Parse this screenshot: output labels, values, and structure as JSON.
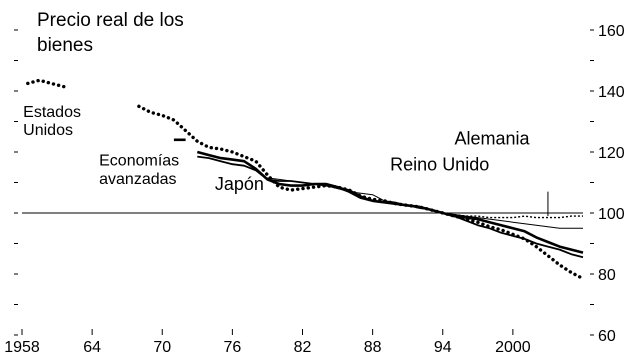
{
  "chart_data": {
    "type": "line",
    "title_lines": [
      "Precio real de los",
      "bienes"
    ],
    "xlabel": "",
    "ylabel": "",
    "xlim": [
      1958,
      2006
    ],
    "ylim": [
      60,
      160
    ],
    "x_tick_values": [
      1958,
      1964,
      1970,
      1976,
      1982,
      1988,
      1994,
      2000
    ],
    "x_tick_labels": [
      "1958",
      "64",
      "70",
      "76",
      "82",
      "88",
      "94",
      "2000"
    ],
    "y_ticks": [
      60,
      80,
      100,
      120,
      140,
      160
    ],
    "y_minor_ticks": [
      70,
      90,
      110,
      130,
      150
    ],
    "y_axis_side": "right",
    "reference_line": 100,
    "series": [
      {
        "name": "Estados Unidos",
        "style": "dotted-thick",
        "segments": [
          [
            [
              1958.5,
              142.5
            ],
            [
              1959.5,
              143.5
            ],
            [
              1960.5,
              142.5
            ],
            [
              1961.5,
              141.5
            ],
            [
              1962.0,
              141.0
            ]
          ],
          [
            [
              1968.0,
              135.0
            ],
            [
              1969.0,
              133.0
            ],
            [
              1970.0,
              132.0
            ],
            [
              1971.0,
              130.5
            ],
            [
              1972.0,
              127.0
            ],
            [
              1973.0,
              123.5
            ],
            [
              1974.0,
              121.5
            ],
            [
              1975.0,
              121.0
            ],
            [
              1976.0,
              120.0
            ],
            [
              1977.0,
              118.5
            ],
            [
              1978.0,
              117.0
            ],
            [
              1979.0,
              112.5
            ],
            [
              1980.0,
              108.5
            ],
            [
              1981.0,
              107.5
            ],
            [
              1982.0,
              108.0
            ],
            [
              1983.0,
              108.5
            ],
            [
              1984.0,
              109.0
            ],
            [
              1985.0,
              108.5
            ],
            [
              1986.0,
              107.5
            ],
            [
              1987.0,
              105.5
            ],
            [
              1988.0,
              104.5
            ],
            [
              1989.0,
              104.0
            ],
            [
              1990.0,
              103.0
            ],
            [
              1991.0,
              102.5
            ],
            [
              1992.0,
              102.0
            ],
            [
              1993.0,
              101.0
            ],
            [
              1994.0,
              100.0
            ],
            [
              1995.0,
              99.0
            ],
            [
              1996.0,
              98.0
            ],
            [
              1997.0,
              97.0
            ],
            [
              1998.0,
              95.5
            ],
            [
              1999.0,
              94.5
            ],
            [
              2000.0,
              93.0
            ],
            [
              2001.0,
              91.5
            ],
            [
              2002.0,
              89.0
            ],
            [
              2003.0,
              86.0
            ],
            [
              2004.0,
              83.0
            ],
            [
              2005.0,
              80.5
            ],
            [
              2006.0,
              78.5
            ]
          ]
        ]
      },
      {
        "name": "Economías avanzadas",
        "style": "solid-thick",
        "segments": [
          [
            [
              1971.0,
              124.0
            ],
            [
              1972.0,
              124.0
            ]
          ],
          [
            [
              1973.0,
              120.0
            ],
            [
              1974.0,
              119.0
            ],
            [
              1975.0,
              118.0
            ],
            [
              1976.0,
              117.5
            ],
            [
              1977.0,
              117.0
            ],
            [
              1978.0,
              114.5
            ],
            [
              1979.0,
              111.0
            ],
            [
              1980.0,
              109.5
            ],
            [
              1981.0,
              109.0
            ],
            [
              1982.0,
              109.0
            ],
            [
              1983.0,
              109.5
            ],
            [
              1984.0,
              109.5
            ],
            [
              1985.0,
              108.5
            ],
            [
              1986.0,
              107.0
            ],
            [
              1987.0,
              105.0
            ],
            [
              1988.0,
              104.0
            ],
            [
              1989.0,
              103.5
            ],
            [
              1990.0,
              103.0
            ],
            [
              1991.0,
              102.5
            ],
            [
              1992.0,
              102.0
            ],
            [
              1993.0,
              101.0
            ],
            [
              1994.0,
              100.0
            ],
            [
              1995.0,
              99.0
            ],
            [
              1996.0,
              98.5
            ],
            [
              1997.0,
              98.0
            ],
            [
              1998.0,
              97.0
            ],
            [
              1999.0,
              96.0
            ],
            [
              2000.0,
              95.0
            ],
            [
              2001.0,
              94.0
            ],
            [
              2002.0,
              92.0
            ],
            [
              2003.0,
              90.5
            ],
            [
              2004.0,
              89.0
            ],
            [
              2005.0,
              88.0
            ],
            [
              2006.0,
              87.0
            ]
          ]
        ]
      },
      {
        "name": "Japón",
        "style": "solid-medium",
        "segments": [
          [
            [
              1973.0,
              118.5
            ],
            [
              1974.0,
              118.0
            ],
            [
              1975.0,
              117.0
            ],
            [
              1976.0,
              116.0
            ],
            [
              1977.0,
              115.5
            ],
            [
              1978.0,
              114.0
            ],
            [
              1979.0,
              111.0
            ],
            [
              1980.0,
              110.5
            ],
            [
              1981.0,
              110.5
            ],
            [
              1982.0,
              110.0
            ],
            [
              1983.0,
              109.5
            ],
            [
              1984.0,
              109.0
            ],
            [
              1985.0,
              108.5
            ],
            [
              1986.0,
              107.5
            ],
            [
              1987.0,
              105.5
            ],
            [
              1988.0,
              104.0
            ],
            [
              1989.0,
              103.5
            ],
            [
              1990.0,
              103.0
            ],
            [
              1991.0,
              102.5
            ],
            [
              1992.0,
              102.0
            ],
            [
              1993.0,
              101.0
            ],
            [
              1994.0,
              100.0
            ],
            [
              1995.0,
              99.0
            ],
            [
              1996.0,
              97.5
            ],
            [
              1997.0,
              96.0
            ],
            [
              1998.0,
              95.0
            ],
            [
              1999.0,
              93.5
            ],
            [
              2000.0,
              92.5
            ],
            [
              2001.0,
              91.5
            ],
            [
              2002.0,
              90.0
            ],
            [
              2003.0,
              89.0
            ],
            [
              2004.0,
              88.0
            ],
            [
              2005.0,
              86.5
            ],
            [
              2006.0,
              85.5
            ]
          ]
        ]
      },
      {
        "name": "Reino Unido",
        "style": "solid-thin",
        "segments": [
          [
            [
              1979.0,
              111.5
            ],
            [
              1980.0,
              111.0
            ],
            [
              1981.0,
              110.5
            ],
            [
              1982.0,
              110.0
            ],
            [
              1983.0,
              109.5
            ],
            [
              1984.0,
              109.0
            ],
            [
              1985.0,
              108.0
            ],
            [
              1986.0,
              107.0
            ],
            [
              1987.0,
              106.5
            ],
            [
              1988.0,
              106.0
            ],
            [
              1989.0,
              104.0
            ],
            [
              1990.0,
              103.5
            ],
            [
              1991.0,
              102.5
            ],
            [
              1992.0,
              101.5
            ],
            [
              1993.0,
              101.0
            ],
            [
              1994.0,
              100.0
            ],
            [
              1995.0,
              99.5
            ],
            [
              1996.0,
              99.0
            ],
            [
              1997.0,
              98.5
            ],
            [
              1998.0,
              98.0
            ],
            [
              1999.0,
              97.5
            ],
            [
              2000.0,
              97.0
            ],
            [
              2001.0,
              96.5
            ],
            [
              2002.0,
              96.0
            ],
            [
              2003.0,
              95.5
            ],
            [
              2004.0,
              95.0
            ],
            [
              2005.0,
              95.0
            ],
            [
              2006.0,
              95.0
            ]
          ]
        ]
      },
      {
        "name": "Alemania",
        "style": "dotted-thin",
        "segments": [
          [
            [
              1995.0,
              99.5
            ],
            [
              1996.0,
              99.0
            ],
            [
              1997.0,
              99.0
            ],
            [
              1998.0,
              98.5
            ],
            [
              1999.0,
              98.5
            ],
            [
              2000.0,
              98.5
            ],
            [
              2001.0,
              99.0
            ],
            [
              2002.0,
              98.5
            ],
            [
              2003.0,
              98.5
            ],
            [
              2004.0,
              98.5
            ],
            [
              2005.0,
              99.0
            ],
            [
              2006.0,
              99.0
            ]
          ]
        ]
      }
    ],
    "annotations": [
      {
        "text": "Estados",
        "size": "normal",
        "xd": 1958.1,
        "yd": 131.5
      },
      {
        "text": "Unidos",
        "size": "normal",
        "xd": 1958.1,
        "yd": 125.5
      },
      {
        "text": "Economías",
        "size": "normal",
        "xd": 1964.6,
        "yd": 115.5
      },
      {
        "text": "avanzadas",
        "size": "normal",
        "xd": 1964.6,
        "yd": 109.5
      },
      {
        "text": "Japón",
        "size": "large",
        "xd": 1974.5,
        "yd": 107.5
      },
      {
        "text": "Reino Unido",
        "size": "large",
        "xd": 1989.5,
        "yd": 114.0
      },
      {
        "text": "Alemania",
        "size": "large",
        "xd": 1995.0,
        "yd": 122.5
      }
    ]
  }
}
